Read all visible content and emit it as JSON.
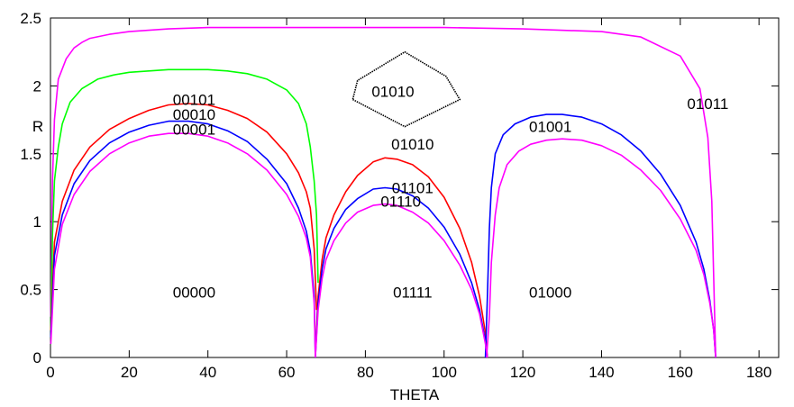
{
  "chart_data": {
    "type": "line",
    "xlabel": "THETA",
    "ylabel": "R",
    "xlim": [
      0,
      185
    ],
    "ylim": [
      0,
      2.5
    ],
    "xticks": [
      0,
      20,
      40,
      60,
      80,
      100,
      120,
      140,
      160,
      180
    ],
    "yticks": [
      0,
      0.5,
      1,
      1.5,
      2,
      2.5
    ],
    "ytick_labels": [
      "0",
      "0.5",
      "1",
      "1.5",
      "2",
      "2.5"
    ],
    "grid": false,
    "legend": "none",
    "series": [
      {
        "color": "#ff00ff",
        "x": [
          0.1,
          0.5,
          1,
          2,
          4,
          6,
          8,
          10,
          15,
          20,
          30,
          40,
          50,
          60,
          64,
          66,
          67.2
        ],
        "y": [
          0.3,
          1.3,
          1.75,
          2.05,
          2.2,
          2.28,
          2.32,
          2.35,
          2.38,
          2.4,
          2.42,
          2.43,
          2.43,
          2.43,
          2.43,
          2.43,
          2.43
        ]
      },
      {
        "color": "#ff00ff",
        "x": [
          67.2,
          80,
          100,
          120,
          140,
          150,
          160,
          165,
          167,
          168,
          169
        ],
        "y": [
          2.43,
          2.43,
          2.43,
          2.42,
          2.4,
          2.36,
          2.22,
          1.98,
          1.62,
          1.15,
          0
        ]
      },
      {
        "color": "#00ff00",
        "x": [
          0.1,
          0.5,
          1,
          2,
          3,
          5,
          8,
          12,
          16,
          20,
          25,
          30,
          35,
          40,
          45,
          50,
          55,
          60,
          63,
          65,
          66,
          67,
          67.6,
          68
        ],
        "y": [
          0.2,
          0.9,
          1.3,
          1.55,
          1.72,
          1.88,
          1.98,
          2.05,
          2.08,
          2.1,
          2.11,
          2.12,
          2.12,
          2.12,
          2.11,
          2.09,
          2.05,
          1.97,
          1.87,
          1.72,
          1.55,
          1.3,
          1.05,
          0.55
        ]
      },
      {
        "color": "#ff0000",
        "x": [
          0.1,
          1,
          3,
          6,
          10,
          15,
          20,
          25,
          30,
          35,
          40,
          45,
          50,
          55,
          60,
          63,
          65,
          66,
          67,
          67.6
        ],
        "y": [
          0.2,
          0.85,
          1.15,
          1.38,
          1.55,
          1.68,
          1.76,
          1.82,
          1.86,
          1.87,
          1.86,
          1.82,
          1.76,
          1.66,
          1.5,
          1.36,
          1.22,
          1.1,
          0.8,
          0.35
        ]
      },
      {
        "color": "#ff0000",
        "x": [
          67.4,
          68,
          69,
          70,
          72,
          75,
          78,
          82,
          85,
          88,
          92,
          96,
          100,
          104,
          107,
          109,
          110.5,
          111
        ],
        "y": [
          0.1,
          0.45,
          0.72,
          0.88,
          1.05,
          1.22,
          1.34,
          1.44,
          1.47,
          1.46,
          1.42,
          1.33,
          1.18,
          0.95,
          0.7,
          0.45,
          0.18,
          0
        ]
      },
      {
        "color": "#0000ff",
        "x": [
          0.1,
          1,
          3,
          6,
          10,
          15,
          20,
          25,
          30,
          35,
          40,
          45,
          50,
          55,
          60,
          63,
          65,
          66,
          67,
          67.3
        ],
        "y": [
          0.15,
          0.75,
          1.05,
          1.28,
          1.45,
          1.58,
          1.66,
          1.71,
          1.74,
          1.74,
          1.72,
          1.67,
          1.59,
          1.46,
          1.28,
          1.1,
          0.93,
          0.78,
          0.45,
          0
        ]
      },
      {
        "color": "#0000ff",
        "x": [
          67.3,
          68,
          69,
          70,
          72,
          75,
          78,
          82,
          85,
          88,
          92,
          96,
          100,
          104,
          107,
          109,
          110.5,
          111
        ],
        "y": [
          0,
          0.4,
          0.65,
          0.8,
          0.95,
          1.09,
          1.17,
          1.24,
          1.25,
          1.24,
          1.19,
          1.1,
          0.96,
          0.76,
          0.55,
          0.35,
          0.12,
          0
        ]
      },
      {
        "color": "#0000ff",
        "x": [
          110.5,
          111,
          111.5,
          112,
          113,
          115,
          118,
          122,
          126,
          130,
          135,
          140,
          145,
          150,
          155,
          160,
          164,
          166,
          167.5,
          168.5,
          169
        ],
        "y": [
          0,
          0.45,
          0.95,
          1.25,
          1.5,
          1.64,
          1.72,
          1.77,
          1.79,
          1.79,
          1.77,
          1.72,
          1.64,
          1.52,
          1.35,
          1.12,
          0.85,
          0.65,
          0.42,
          0.2,
          0
        ]
      },
      {
        "color": "#ff00ff",
        "x": [
          0.1,
          1,
          3,
          6,
          10,
          15,
          20,
          25,
          30,
          35,
          40,
          45,
          50,
          55,
          60,
          63,
          65,
          66,
          67,
          67.3
        ],
        "y": [
          0.1,
          0.65,
          0.98,
          1.2,
          1.37,
          1.5,
          1.58,
          1.63,
          1.65,
          1.65,
          1.63,
          1.58,
          1.5,
          1.38,
          1.2,
          1.04,
          0.88,
          0.74,
          0.4,
          0
        ]
      },
      {
        "color": "#ff00ff",
        "x": [
          67.3,
          68,
          69,
          70,
          72,
          75,
          78,
          82,
          85,
          88,
          92,
          96,
          100,
          104,
          107,
          109,
          110.5,
          111
        ],
        "y": [
          0,
          0.35,
          0.58,
          0.72,
          0.86,
          0.99,
          1.07,
          1.12,
          1.13,
          1.12,
          1.07,
          0.99,
          0.86,
          0.68,
          0.5,
          0.32,
          0.1,
          0
        ]
      },
      {
        "color": "#ff00ff",
        "x": [
          110.8,
          111.5,
          112,
          113,
          114,
          116,
          119,
          122,
          126,
          130,
          135,
          140,
          145,
          150,
          155,
          160,
          164,
          166,
          167.5,
          168.5,
          169
        ],
        "y": [
          0,
          0.3,
          0.7,
          1.05,
          1.25,
          1.42,
          1.52,
          1.57,
          1.6,
          1.61,
          1.6,
          1.56,
          1.49,
          1.38,
          1.23,
          1.02,
          0.79,
          0.61,
          0.4,
          0.2,
          0
        ]
      }
    ],
    "inset_shape": {
      "color": "#000000",
      "style": "dotted",
      "points": [
        [
          76.8,
          1.9
        ],
        [
          90,
          1.7
        ],
        [
          104,
          1.9
        ],
        [
          100.5,
          2.07
        ],
        [
          90,
          2.25
        ],
        [
          78,
          2.04
        ],
        [
          76.8,
          1.9
        ]
      ]
    },
    "annotations": [
      {
        "text": "00101",
        "x": 36.5,
        "y": 1.9
      },
      {
        "text": "00010",
        "x": 36.5,
        "y": 1.79
      },
      {
        "text": "00001",
        "x": 36.5,
        "y": 1.68
      },
      {
        "text": "00000",
        "x": 36.5,
        "y": 0.48
      },
      {
        "text": "01010",
        "x": 87,
        "y": 1.96
      },
      {
        "text": "01010",
        "x": 92,
        "y": 1.57
      },
      {
        "text": "01101",
        "x": 92,
        "y": 1.25
      },
      {
        "text": "01110",
        "x": 89,
        "y": 1.15
      },
      {
        "text": "01111",
        "x": 92,
        "y": 0.48
      },
      {
        "text": "01001",
        "x": 127,
        "y": 1.7
      },
      {
        "text": "01000",
        "x": 127,
        "y": 0.48
      },
      {
        "text": "01011",
        "x": 167,
        "y": 1.87
      }
    ]
  }
}
